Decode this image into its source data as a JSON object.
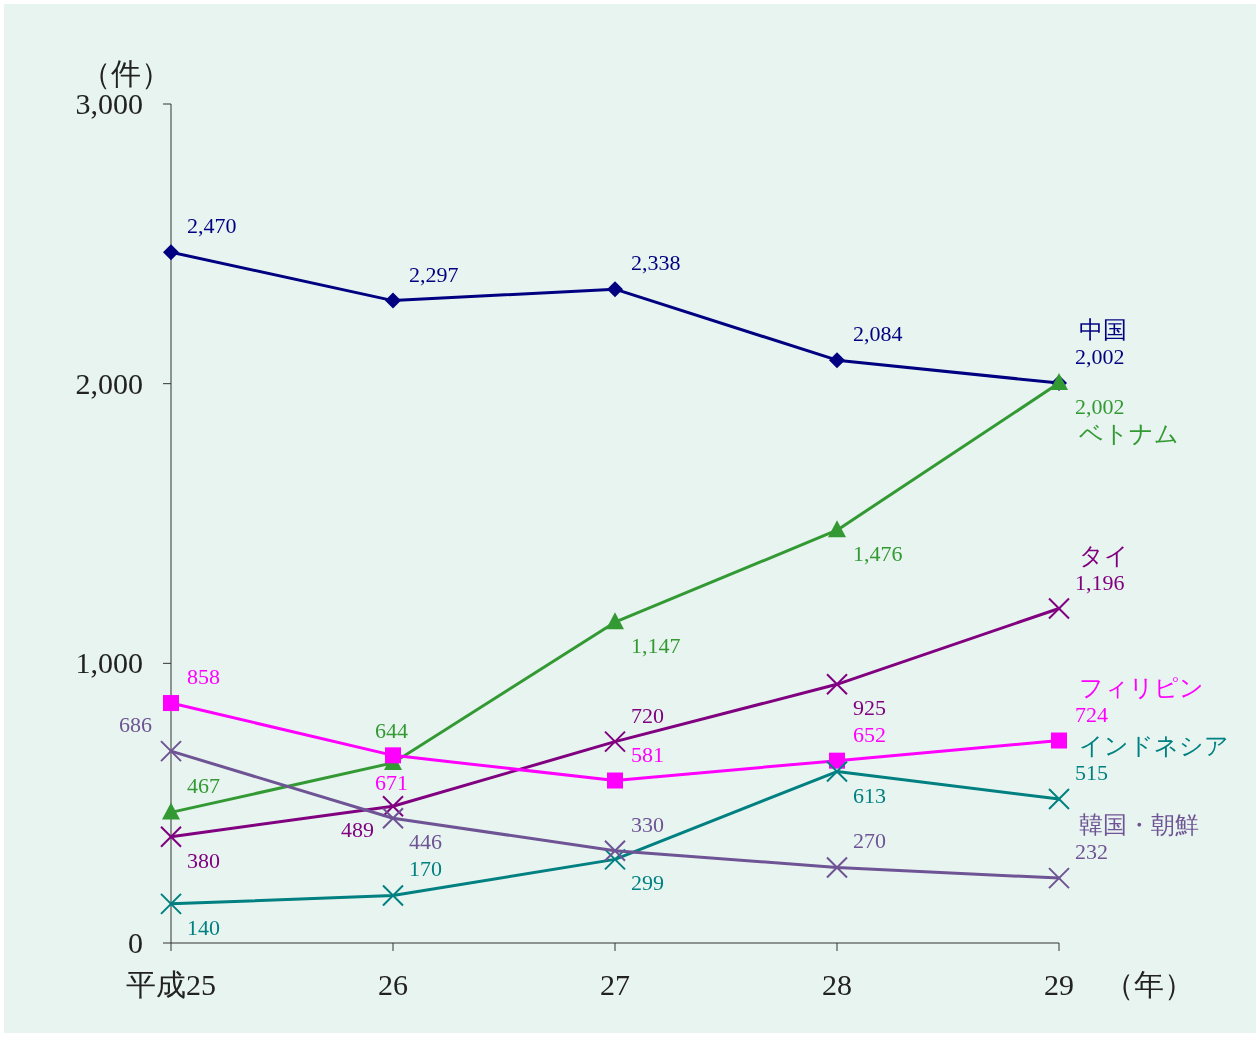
{
  "chart_data": {
    "type": "line",
    "categories": [
      "平成25",
      "26",
      "27",
      "28",
      "29"
    ],
    "xlabel": "（年）",
    "ylabel": "（件）",
    "ylim": [
      0,
      3000
    ],
    "yticks": [
      0,
      {
        "value": 1000,
        "label": "1,000"
      },
      {
        "value": 2000,
        "label": "2,000"
      },
      {
        "value": 3000,
        "label": "3,000"
      }
    ],
    "grid": false,
    "legend": false,
    "series": [
      {
        "name": "中国",
        "color": "#000080",
        "marker": "diamond",
        "values": [
          2470,
          2297,
          2338,
          2084,
          2002
        ],
        "value_labels": [
          "2,470",
          "2,297",
          "2,338",
          "2,084",
          "2,002"
        ]
      },
      {
        "name": "ベトナム",
        "color": "#339933",
        "marker": "triangle",
        "values": [
          467,
          644,
          1147,
          1476,
          2002
        ],
        "value_labels": [
          "467",
          "644",
          "1,147",
          "1,476",
          "2,002"
        ]
      },
      {
        "name": "タイ",
        "color": "#800080",
        "marker": "cross",
        "values": [
          380,
          489,
          720,
          925,
          1196
        ],
        "value_labels": [
          "380",
          "489",
          "720",
          "925",
          "1,196"
        ]
      },
      {
        "name": "フィリピン",
        "color": "#ff00ff",
        "marker": "square",
        "values": [
          858,
          671,
          581,
          652,
          724
        ],
        "value_labels": [
          "858",
          "671",
          "581",
          "652",
          "724"
        ]
      },
      {
        "name": "インドネシア",
        "color": "#008080",
        "marker": "cross",
        "values": [
          140,
          170,
          299,
          613,
          515
        ],
        "value_labels": [
          "140",
          "170",
          "299",
          "613",
          "515"
        ]
      },
      {
        "name": "韓国・朝鮮",
        "color": "#6e5494",
        "marker": "cross",
        "values": [
          686,
          446,
          330,
          270,
          232
        ],
        "value_labels": [
          "686",
          "446",
          "330",
          "270",
          "232"
        ]
      }
    ]
  }
}
